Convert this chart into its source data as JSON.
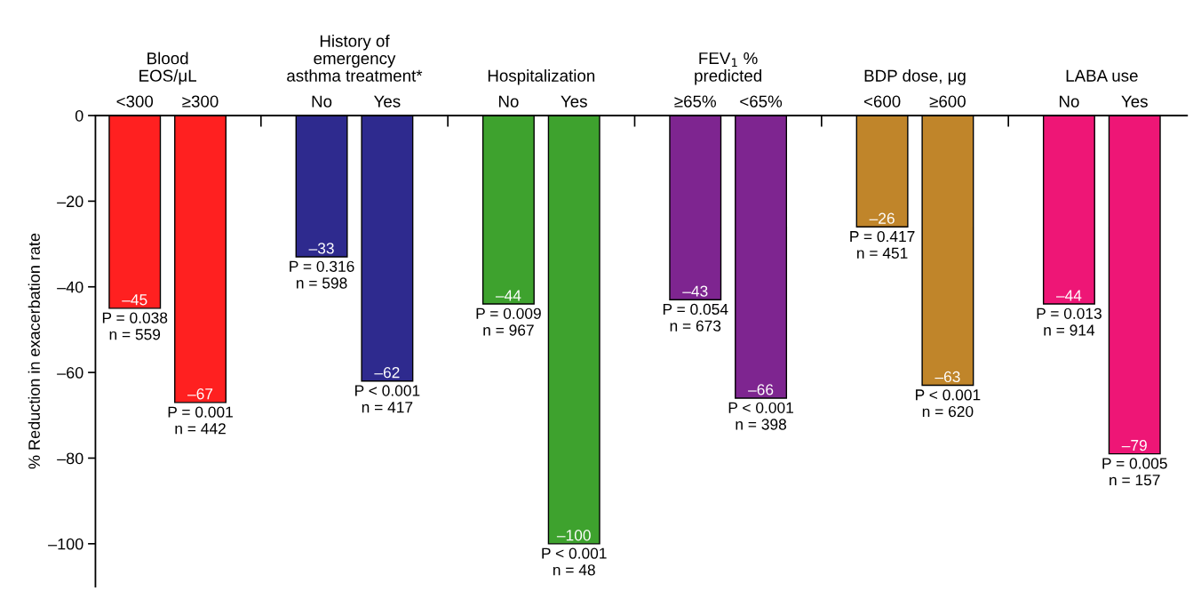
{
  "chart_data": {
    "type": "bar",
    "ylabel": "% Reduction in exacerbation rate",
    "categories": [
      "<300",
      "≥300",
      "No",
      "Yes",
      "No",
      "Yes",
      "≥65%",
      "<65%",
      "<600",
      "≥600",
      "No",
      "Yes"
    ],
    "values": [
      -45,
      -67,
      -33,
      -62,
      -44,
      -100,
      -43,
      -66,
      -26,
      -63,
      -44,
      -79
    ],
    "colors": [
      "#ff2020",
      "#ff2020",
      "#2e2a8e",
      "#2e2a8e",
      "#3ea22e",
      "#3ea22e",
      "#7e2590",
      "#7e2590",
      "#c0852a",
      "#c0852a",
      "#ee1676",
      "#ee1676"
    ],
    "value_labels": [
      "–45",
      "–67",
      "–33",
      "–62",
      "–44",
      "–100",
      "–43",
      "–66",
      "–26",
      "–63",
      "–44",
      "–79"
    ],
    "ylim": [
      -110,
      0
    ],
    "yticks": [
      {
        "value": 0,
        "label": "0"
      },
      {
        "value": -20,
        "label": "–20"
      },
      {
        "value": -40,
        "label": "–40"
      },
      {
        "value": -60,
        "label": "–60"
      },
      {
        "value": -80,
        "label": "–80"
      },
      {
        "value": -100,
        "label": "–100"
      }
    ],
    "grid": false,
    "annotations": [
      "Blood\nEOS/μL",
      "History of\nemergency\nasthma treatment*",
      "Hospitalization",
      "FEV$_{1}$ %\npredicted",
      "BDP dose, μg",
      "LABA use",
      "P = 0.038\nn = 559",
      "P = 0.001\nn = 442",
      "P = 0.316\nn = 598",
      "P < 0.001\nn = 417",
      "P = 0.009\nn = 967",
      "P < 0.001\nn = 48",
      "P = 0.054\nn = 673",
      "P < 0.001\nn = 398",
      "P = 0.417\nn = 451",
      "P < 0.001\nn = 620",
      "P = 0.013\nn = 914",
      "P = 0.005\nn = 157"
    ]
  }
}
